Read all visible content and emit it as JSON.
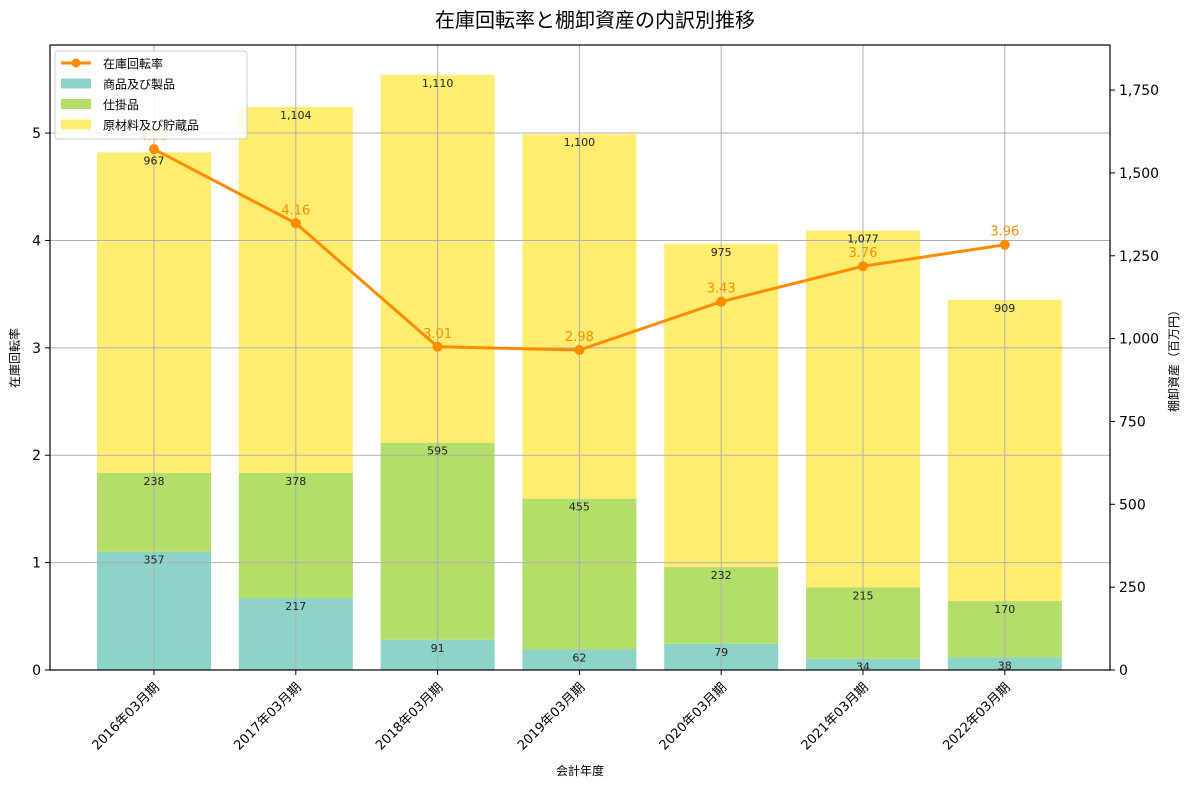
{
  "chart_data": {
    "type": "bar",
    "subtype": "stacked_bar_with_line_secondary",
    "title": "在庫回転率と棚卸資産の内訳別推移",
    "xlabel": "会計年度",
    "ylabel_left": "在庫回転率",
    "ylabel_right": "棚卸資産（百万円）",
    "categories": [
      "2016年03月期",
      "2017年03月期",
      "2018年03月期",
      "2019年03月期",
      "2020年03月期",
      "2021年03月期",
      "2022年03月期"
    ],
    "line_series": {
      "name": "在庫回転率",
      "axis": "left",
      "color": "#ff8c00",
      "values": [
        4.85,
        4.16,
        3.01,
        2.98,
        3.43,
        3.76,
        3.96
      ],
      "labels": [
        "4.85",
        "4.16",
        "3.01",
        "2.98",
        "3.43",
        "3.76",
        "3.96"
      ]
    },
    "series": [
      {
        "name": "商品及び製品",
        "axis": "right",
        "color": "#8dd3c7",
        "values": [
          357,
          217,
          91,
          62,
          79,
          34,
          38
        ]
      },
      {
        "name": "仕掛品",
        "axis": "right",
        "color": "#b3de69",
        "values": [
          238,
          378,
          595,
          455,
          232,
          215,
          170
        ]
      },
      {
        "name": "原材料及び貯蔵品",
        "axis": "right",
        "color": "#ffed6f",
        "values": [
          967,
          1104,
          1110,
          1100,
          975,
          1077,
          909
        ]
      }
    ],
    "bar_labels": [
      [
        "357",
        "217",
        "91",
        "62",
        "79",
        "34",
        "38"
      ],
      [
        "238",
        "378",
        "595",
        "455",
        "232",
        "215",
        "170"
      ],
      [
        "967",
        "1,104",
        "1,110",
        "1,100",
        "975",
        "1,077",
        "909"
      ]
    ],
    "ylim_left": [
      0,
      5.82
    ],
    "ylim_right": [
      0,
      1886
    ],
    "yticks_left": [
      "0",
      "1",
      "2",
      "3",
      "4",
      "5"
    ],
    "yticks_right": [
      "0",
      "250",
      "500",
      "750",
      "1,000",
      "1,250",
      "1,500",
      "1,750"
    ],
    "grid": true,
    "legend_position": "upper left",
    "legend": [
      "在庫回転率",
      "商品及び製品",
      "仕掛品",
      "原材料及び貯蔵品"
    ]
  }
}
